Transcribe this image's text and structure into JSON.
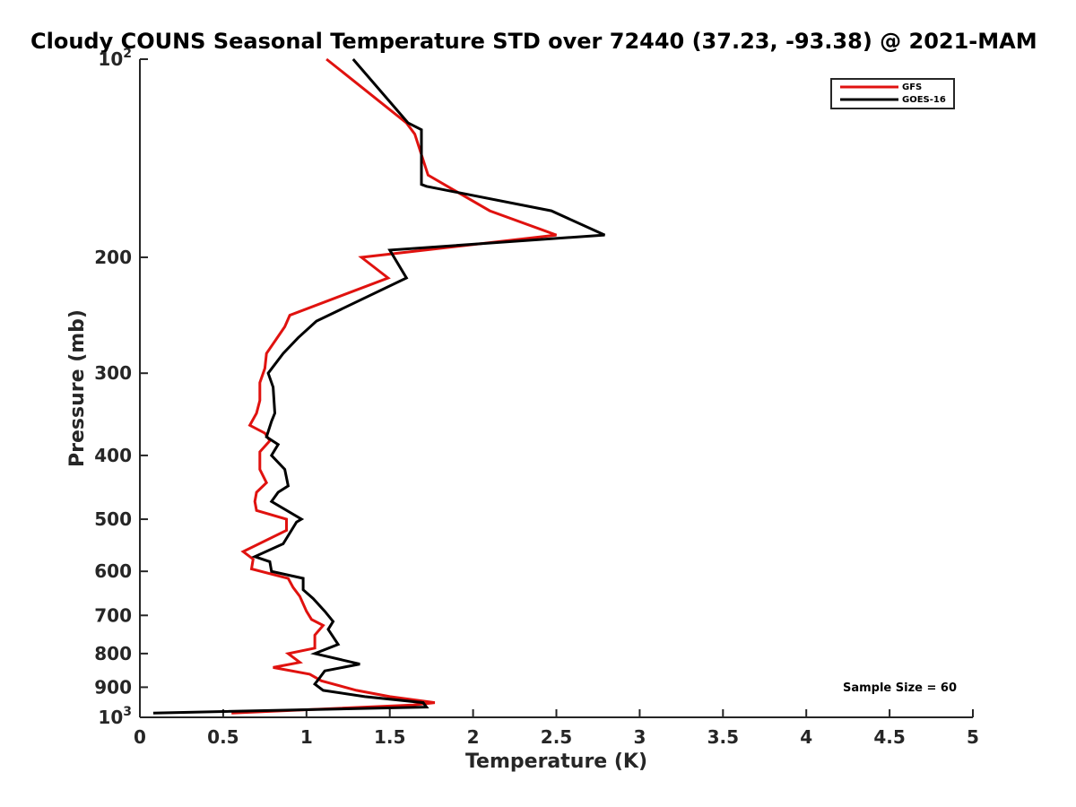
{
  "chart_data": {
    "type": "line",
    "title": "Cloudy COUNS Seasonal Temperature STD over 72440 (37.23, -93.38) @ 2021-MAM",
    "xlabel": "Temperature (K)",
    "ylabel": "Pressure (mb)",
    "xlim": [
      0,
      5
    ],
    "ylim": [
      100,
      1000
    ],
    "yscale": "log",
    "y_reversed": true,
    "grid": false,
    "legend_position": "top-right",
    "x_ticks": [
      {
        "value": 0,
        "label": "0"
      },
      {
        "value": 0.5,
        "label": "0.5"
      },
      {
        "value": 1,
        "label": "1"
      },
      {
        "value": 1.5,
        "label": "1.5"
      },
      {
        "value": 2,
        "label": "2"
      },
      {
        "value": 2.5,
        "label": "2.5"
      },
      {
        "value": 3,
        "label": "3"
      },
      {
        "value": 3.5,
        "label": "3.5"
      },
      {
        "value": 4,
        "label": "4"
      },
      {
        "value": 4.5,
        "label": "4.5"
      },
      {
        "value": 5,
        "label": "5"
      }
    ],
    "y_ticks": [
      {
        "value": 100,
        "base": "10",
        "exp": "2"
      },
      {
        "value": 200,
        "label": "200"
      },
      {
        "value": 300,
        "label": "300"
      },
      {
        "value": 400,
        "label": "400"
      },
      {
        "value": 500,
        "label": "500"
      },
      {
        "value": 600,
        "label": "600"
      },
      {
        "value": 700,
        "label": "700"
      },
      {
        "value": 800,
        "label": "800"
      },
      {
        "value": 900,
        "label": "900"
      },
      {
        "value": 1000,
        "base": "10",
        "exp": "3"
      }
    ],
    "annotation": "Sample Size = 60",
    "series": [
      {
        "name": "GFS",
        "color": "#e0120f",
        "points": [
          [
            1.12,
            100
          ],
          [
            1.6,
            125
          ],
          [
            1.65,
            130
          ],
          [
            1.73,
            150
          ],
          [
            2.1,
            170
          ],
          [
            2.5,
            185
          ],
          [
            1.33,
            200
          ],
          [
            1.49,
            215
          ],
          [
            0.9,
            245
          ],
          [
            0.87,
            255
          ],
          [
            0.76,
            280
          ],
          [
            0.75,
            295
          ],
          [
            0.72,
            310
          ],
          [
            0.72,
            330
          ],
          [
            0.7,
            345
          ],
          [
            0.66,
            360
          ],
          [
            0.75,
            370
          ],
          [
            0.78,
            380
          ],
          [
            0.72,
            395
          ],
          [
            0.72,
            420
          ],
          [
            0.76,
            440
          ],
          [
            0.7,
            455
          ],
          [
            0.69,
            470
          ],
          [
            0.7,
            485
          ],
          [
            0.88,
            500
          ],
          [
            0.88,
            520
          ],
          [
            0.62,
            560
          ],
          [
            0.68,
            575
          ],
          [
            0.67,
            595
          ],
          [
            0.89,
            615
          ],
          [
            0.92,
            635
          ],
          [
            0.96,
            655
          ],
          [
            1.0,
            690
          ],
          [
            1.03,
            710
          ],
          [
            1.1,
            725
          ],
          [
            1.05,
            750
          ],
          [
            1.05,
            785
          ],
          [
            0.89,
            800
          ],
          [
            0.96,
            825
          ],
          [
            0.8,
            840
          ],
          [
            1.02,
            860
          ],
          [
            1.09,
            880
          ],
          [
            1.3,
            910
          ],
          [
            1.5,
            930
          ],
          [
            1.77,
            950
          ],
          [
            1.64,
            958
          ],
          [
            0.55,
            985
          ]
        ]
      },
      {
        "name": "GOES-16",
        "color": "#000000",
        "points": [
          [
            1.28,
            100
          ],
          [
            1.61,
            125
          ],
          [
            1.69,
            128
          ],
          [
            1.69,
            155
          ],
          [
            1.72,
            156
          ],
          [
            2.47,
            170
          ],
          [
            2.79,
            185
          ],
          [
            1.5,
            195
          ],
          [
            1.6,
            215
          ],
          [
            1.06,
            250
          ],
          [
            0.95,
            265
          ],
          [
            0.86,
            280
          ],
          [
            0.77,
            300
          ],
          [
            0.8,
            315
          ],
          [
            0.81,
            345
          ],
          [
            0.79,
            355
          ],
          [
            0.76,
            375
          ],
          [
            0.83,
            385
          ],
          [
            0.79,
            400
          ],
          [
            0.87,
            420
          ],
          [
            0.89,
            445
          ],
          [
            0.83,
            455
          ],
          [
            0.79,
            470
          ],
          [
            0.97,
            500
          ],
          [
            0.94,
            505
          ],
          [
            0.86,
            545
          ],
          [
            0.69,
            570
          ],
          [
            0.78,
            580
          ],
          [
            0.79,
            600
          ],
          [
            0.98,
            615
          ],
          [
            0.98,
            640
          ],
          [
            1.04,
            660
          ],
          [
            1.11,
            690
          ],
          [
            1.16,
            715
          ],
          [
            1.13,
            735
          ],
          [
            1.19,
            775
          ],
          [
            1.05,
            800
          ],
          [
            1.32,
            830
          ],
          [
            1.11,
            850
          ],
          [
            1.08,
            870
          ],
          [
            1.05,
            890
          ],
          [
            1.1,
            910
          ],
          [
            1.35,
            930
          ],
          [
            1.7,
            950
          ],
          [
            1.72,
            965
          ],
          [
            0.08,
            985
          ]
        ]
      }
    ]
  }
}
